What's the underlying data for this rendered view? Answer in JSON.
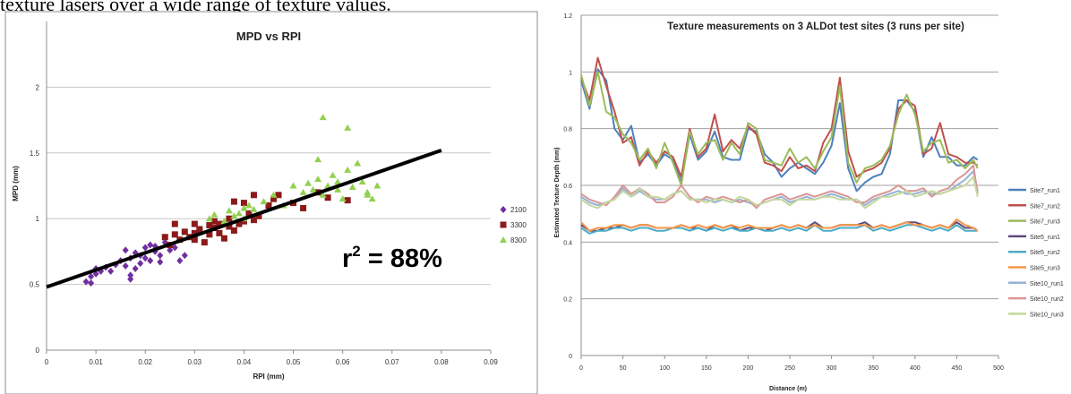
{
  "page": {
    "top_text": "texture lasers over a wide range of texture values."
  },
  "chart_data": [
    {
      "type": "scatter",
      "title": "MPD vs RPI",
      "xlabel": "RPI (mm)",
      "ylabel": "MPD (mm)",
      "xlim": [
        0,
        0.09
      ],
      "ylim": [
        0,
        2.5
      ],
      "x_ticks": [
        "0",
        "0.01",
        "0.02",
        "0.03",
        "0.04",
        "0.05",
        "0.06",
        "0.07",
        "0.08",
        "0.09"
      ],
      "y_ticks": [
        "0",
        "0.5",
        "1",
        "1.5",
        "2"
      ],
      "grid": true,
      "legend_position": "right",
      "annotation": {
        "prefix": "r",
        "sup": "2",
        "suffix": " = 88%"
      },
      "trendline": {
        "x": [
          0,
          0.08
        ],
        "y": [
          0.48,
          1.52
        ],
        "color": "#000000"
      },
      "series": [
        {
          "name": "2100",
          "color": "#7030A0",
          "marker": "diamond",
          "points": [
            [
              0.008,
              0.52
            ],
            [
              0.009,
              0.56
            ],
            [
              0.009,
              0.51
            ],
            [
              0.01,
              0.58
            ],
            [
              0.01,
              0.62
            ],
            [
              0.011,
              0.6
            ],
            [
              0.012,
              0.63
            ],
            [
              0.013,
              0.6
            ],
            [
              0.014,
              0.65
            ],
            [
              0.015,
              0.68
            ],
            [
              0.016,
              0.64
            ],
            [
              0.017,
              0.7
            ],
            [
              0.017,
              0.57
            ],
            [
              0.018,
              0.62
            ],
            [
              0.018,
              0.74
            ],
            [
              0.019,
              0.72
            ],
            [
              0.019,
              0.66
            ],
            [
              0.02,
              0.78
            ],
            [
              0.02,
              0.7
            ],
            [
              0.021,
              0.8
            ],
            [
              0.021,
              0.68
            ],
            [
              0.022,
              0.75
            ],
            [
              0.022,
              0.79
            ],
            [
              0.023,
              0.72
            ],
            [
              0.023,
              0.67
            ],
            [
              0.024,
              0.82
            ],
            [
              0.025,
              0.76
            ],
            [
              0.026,
              0.78
            ],
            [
              0.027,
              0.68
            ],
            [
              0.028,
              0.72
            ],
            [
              0.017,
              0.54
            ],
            [
              0.016,
              0.76
            ]
          ]
        },
        {
          "name": "3300",
          "color": "#8B1A1A",
          "marker": "square",
          "points": [
            [
              0.024,
              0.86
            ],
            [
              0.025,
              0.8
            ],
            [
              0.026,
              0.88
            ],
            [
              0.027,
              0.84
            ],
            [
              0.028,
              0.9
            ],
            [
              0.029,
              0.86
            ],
            [
              0.03,
              0.96
            ],
            [
              0.03,
              0.84
            ],
            [
              0.031,
              0.9
            ],
            [
              0.031,
              0.92
            ],
            [
              0.032,
              0.82
            ],
            [
              0.033,
              0.95
            ],
            [
              0.033,
              0.88
            ],
            [
              0.034,
              0.98
            ],
            [
              0.034,
              0.93
            ],
            [
              0.035,
              0.89
            ],
            [
              0.035,
              0.96
            ],
            [
              0.036,
              0.85
            ],
            [
              0.037,
              0.94
            ],
            [
              0.037,
              1.0
            ],
            [
              0.038,
              0.91
            ],
            [
              0.039,
              0.96
            ],
            [
              0.04,
              1.12
            ],
            [
              0.04,
              0.98
            ],
            [
              0.041,
              1.04
            ],
            [
              0.042,
              0.99
            ],
            [
              0.042,
              1.18
            ],
            [
              0.043,
              1.02
            ],
            [
              0.045,
              1.1
            ],
            [
              0.046,
              1.15
            ],
            [
              0.047,
              1.18
            ],
            [
              0.05,
              1.12
            ],
            [
              0.052,
              1.08
            ],
            [
              0.055,
              1.2
            ],
            [
              0.057,
              1.16
            ],
            [
              0.061,
              1.14
            ],
            [
              0.026,
              0.96
            ],
            [
              0.038,
              1.13
            ],
            [
              0.03,
              0.89
            ]
          ]
        },
        {
          "name": "8300",
          "color": "#92D050",
          "marker": "triangle",
          "points": [
            [
              0.033,
              1.0
            ],
            [
              0.034,
              1.03
            ],
            [
              0.036,
              0.98
            ],
            [
              0.037,
              1.06
            ],
            [
              0.038,
              1.02
            ],
            [
              0.039,
              1.04
            ],
            [
              0.04,
              1.0
            ],
            [
              0.04,
              1.08
            ],
            [
              0.041,
              1.1
            ],
            [
              0.042,
              1.07
            ],
            [
              0.044,
              1.13
            ],
            [
              0.046,
              1.18
            ],
            [
              0.048,
              1.1
            ],
            [
              0.05,
              1.25
            ],
            [
              0.052,
              1.2
            ],
            [
              0.053,
              1.27
            ],
            [
              0.055,
              1.45
            ],
            [
              0.055,
              1.3
            ],
            [
              0.056,
              1.77
            ],
            [
              0.057,
              1.25
            ],
            [
              0.058,
              1.33
            ],
            [
              0.059,
              1.22
            ],
            [
              0.06,
              1.15
            ],
            [
              0.061,
              1.69
            ],
            [
              0.061,
              1.37
            ],
            [
              0.062,
              1.24
            ],
            [
              0.063,
              1.42
            ],
            [
              0.064,
              1.28
            ],
            [
              0.065,
              1.18
            ],
            [
              0.066,
              1.15
            ],
            [
              0.067,
              1.25
            ],
            [
              0.056,
              1.18
            ],
            [
              0.054,
              1.22
            ],
            [
              0.059,
              1.28
            ],
            [
              0.065,
              1.2
            ]
          ]
        }
      ]
    },
    {
      "type": "line",
      "title": "Texture measurements on 3 ALDot test sites (3 runs per site)",
      "xlabel": "Distance (m)",
      "ylabel": "Estimated Texture Depth (mm)",
      "xlim": [
        0,
        500
      ],
      "ylim": [
        0,
        1.2
      ],
      "x_ticks": [
        "0",
        "50",
        "100",
        "150",
        "200",
        "250",
        "300",
        "350",
        "400",
        "450",
        "500"
      ],
      "y_ticks": [
        "0",
        "0.2",
        "0.4",
        "0.6",
        "0.8",
        "1",
        "1.2"
      ],
      "grid": true,
      "legend_position": "right",
      "x": [
        0,
        10,
        20,
        30,
        40,
        50,
        60,
        70,
        80,
        90,
        100,
        110,
        120,
        130,
        140,
        150,
        160,
        170,
        180,
        190,
        200,
        210,
        220,
        230,
        240,
        250,
        260,
        270,
        280,
        290,
        300,
        310,
        320,
        330,
        340,
        350,
        360,
        370,
        380,
        390,
        400,
        410,
        420,
        430,
        440,
        450,
        460,
        470,
        475
      ],
      "series": [
        {
          "name": "Site7_run1",
          "color": "#4F81BD",
          "values": [
            0.97,
            0.87,
            1.01,
            0.97,
            0.8,
            0.76,
            0.81,
            0.68,
            0.71,
            0.67,
            0.71,
            0.69,
            0.61,
            0.78,
            0.69,
            0.72,
            0.79,
            0.7,
            0.69,
            0.69,
            0.8,
            0.79,
            0.71,
            0.68,
            0.63,
            0.66,
            0.68,
            0.66,
            0.64,
            0.68,
            0.74,
            0.89,
            0.66,
            0.58,
            0.61,
            0.63,
            0.64,
            0.71,
            0.9,
            0.9,
            0.86,
            0.7,
            0.77,
            0.7,
            0.7,
            0.67,
            0.67,
            0.7,
            0.69
          ]
        },
        {
          "name": "Site7_run2",
          "color": "#C0504D",
          "values": [
            0.98,
            0.9,
            1.05,
            0.95,
            0.86,
            0.75,
            0.77,
            0.67,
            0.72,
            0.68,
            0.72,
            0.7,
            0.63,
            0.8,
            0.7,
            0.73,
            0.85,
            0.72,
            0.76,
            0.73,
            0.81,
            0.78,
            0.68,
            0.67,
            0.65,
            0.7,
            0.66,
            0.67,
            0.65,
            0.75,
            0.8,
            0.98,
            0.72,
            0.63,
            0.65,
            0.66,
            0.68,
            0.73,
            0.87,
            0.9,
            0.88,
            0.71,
            0.73,
            0.82,
            0.71,
            0.7,
            0.68,
            0.68,
            0.67
          ]
        },
        {
          "name": "Site7_run3",
          "color": "#9BBB59",
          "values": [
            0.99,
            0.88,
            1.0,
            0.86,
            0.84,
            0.78,
            0.75,
            0.69,
            0.73,
            0.66,
            0.75,
            0.68,
            0.6,
            0.79,
            0.71,
            0.75,
            0.76,
            0.69,
            0.75,
            0.71,
            0.82,
            0.8,
            0.69,
            0.68,
            0.67,
            0.73,
            0.68,
            0.7,
            0.66,
            0.72,
            0.77,
            0.95,
            0.68,
            0.61,
            0.66,
            0.67,
            0.69,
            0.74,
            0.85,
            0.92,
            0.85,
            0.72,
            0.75,
            0.76,
            0.68,
            0.69,
            0.66,
            0.69,
            0.66
          ]
        },
        {
          "name": "Site5_run1",
          "color": "#604A7B",
          "values": [
            0.46,
            0.44,
            0.44,
            0.45,
            0.45,
            0.46,
            0.45,
            0.46,
            0.46,
            0.45,
            0.45,
            0.45,
            0.46,
            0.45,
            0.45,
            0.44,
            0.46,
            0.45,
            0.46,
            0.44,
            0.45,
            0.45,
            0.44,
            0.45,
            0.46,
            0.45,
            0.46,
            0.45,
            0.47,
            0.45,
            0.45,
            0.46,
            0.46,
            0.46,
            0.47,
            0.45,
            0.46,
            0.45,
            0.46,
            0.47,
            0.47,
            0.46,
            0.45,
            0.46,
            0.45,
            0.47,
            0.45,
            0.45,
            0.44
          ]
        },
        {
          "name": "Site5_run2",
          "color": "#4BACC6",
          "values": [
            0.45,
            0.43,
            0.44,
            0.44,
            0.45,
            0.45,
            0.44,
            0.45,
            0.45,
            0.44,
            0.44,
            0.45,
            0.45,
            0.44,
            0.45,
            0.44,
            0.45,
            0.44,
            0.45,
            0.44,
            0.44,
            0.45,
            0.44,
            0.44,
            0.45,
            0.44,
            0.45,
            0.44,
            0.46,
            0.44,
            0.44,
            0.45,
            0.45,
            0.45,
            0.46,
            0.44,
            0.45,
            0.44,
            0.45,
            0.46,
            0.46,
            0.45,
            0.44,
            0.45,
            0.44,
            0.46,
            0.44,
            0.44,
            0.44
          ]
        },
        {
          "name": "Site5_run3",
          "color": "#F79646",
          "values": [
            0.47,
            0.44,
            0.45,
            0.45,
            0.46,
            0.46,
            0.45,
            0.46,
            0.46,
            0.45,
            0.45,
            0.45,
            0.46,
            0.45,
            0.46,
            0.45,
            0.46,
            0.45,
            0.46,
            0.45,
            0.46,
            0.45,
            0.45,
            0.45,
            0.46,
            0.45,
            0.46,
            0.45,
            0.46,
            0.45,
            0.45,
            0.46,
            0.46,
            0.46,
            0.46,
            0.45,
            0.46,
            0.45,
            0.46,
            0.47,
            0.46,
            0.46,
            0.45,
            0.46,
            0.45,
            0.48,
            0.46,
            0.45,
            0.44
          ]
        },
        {
          "name": "Site10_run1",
          "color": "#95B3D7",
          "values": [
            0.56,
            0.54,
            0.53,
            0.54,
            0.55,
            0.59,
            0.56,
            0.58,
            0.56,
            0.55,
            0.55,
            0.57,
            0.58,
            0.55,
            0.55,
            0.55,
            0.54,
            0.55,
            0.54,
            0.55,
            0.54,
            0.53,
            0.54,
            0.55,
            0.56,
            0.54,
            0.55,
            0.56,
            0.55,
            0.56,
            0.57,
            0.56,
            0.55,
            0.55,
            0.53,
            0.55,
            0.56,
            0.57,
            0.58,
            0.57,
            0.57,
            0.58,
            0.57,
            0.57,
            0.58,
            0.6,
            0.62,
            0.65,
            0.58
          ]
        },
        {
          "name": "Site10_run2",
          "color": "#DA9694",
          "values": [
            0.57,
            0.55,
            0.54,
            0.53,
            0.56,
            0.6,
            0.57,
            0.59,
            0.57,
            0.54,
            0.54,
            0.56,
            0.6,
            0.56,
            0.54,
            0.56,
            0.55,
            0.56,
            0.55,
            0.54,
            0.55,
            0.52,
            0.55,
            0.56,
            0.57,
            0.55,
            0.56,
            0.57,
            0.56,
            0.57,
            0.58,
            0.57,
            0.56,
            0.54,
            0.54,
            0.56,
            0.57,
            0.58,
            0.6,
            0.58,
            0.58,
            0.59,
            0.56,
            0.58,
            0.59,
            0.62,
            0.64,
            0.67,
            0.57
          ]
        },
        {
          "name": "Site10_run3",
          "color": "#C4D79B",
          "values": [
            0.55,
            0.53,
            0.52,
            0.54,
            0.55,
            0.58,
            0.56,
            0.59,
            0.56,
            0.56,
            0.55,
            0.57,
            0.58,
            0.55,
            0.55,
            0.54,
            0.55,
            0.55,
            0.54,
            0.56,
            0.55,
            0.53,
            0.54,
            0.55,
            0.55,
            0.53,
            0.55,
            0.55,
            0.55,
            0.56,
            0.56,
            0.55,
            0.55,
            0.55,
            0.52,
            0.54,
            0.56,
            0.56,
            0.57,
            0.58,
            0.56,
            0.57,
            0.58,
            0.57,
            0.58,
            0.59,
            0.6,
            0.63,
            0.56
          ]
        }
      ]
    }
  ]
}
